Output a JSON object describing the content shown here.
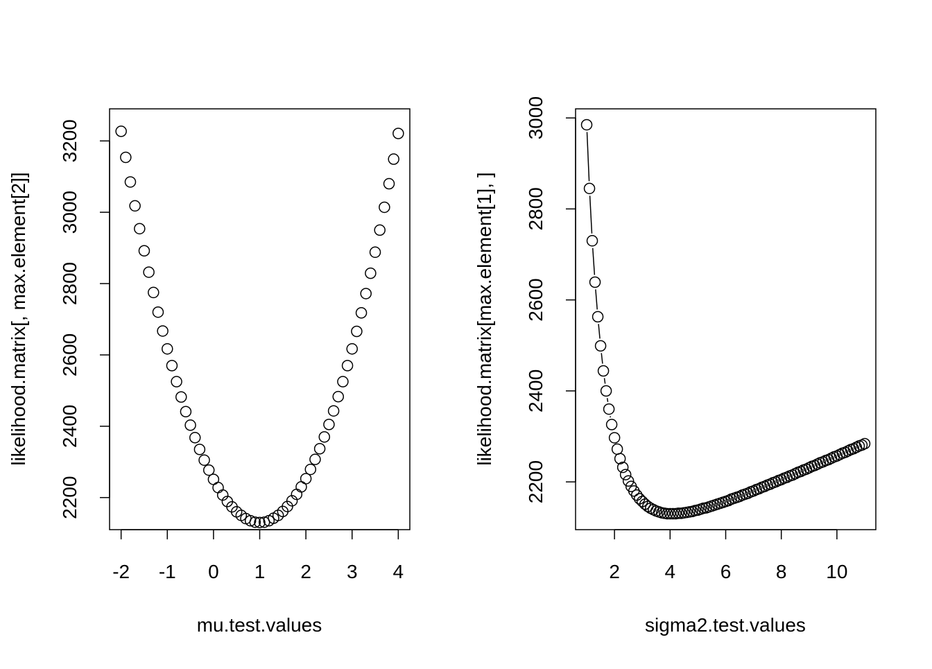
{
  "chart_data": [
    {
      "type": "scatter",
      "title": "",
      "xlabel": "mu.test.values",
      "ylabel": "likelihood.matrix[, max.element[2]]",
      "xlim": [
        -2.25,
        4.25
      ],
      "ylim": [
        2110,
        3290
      ],
      "xticks": [
        -2,
        -1,
        0,
        1,
        2,
        3,
        4
      ],
      "xtick_labels": [
        "-2",
        "-1",
        "0",
        "1",
        "2",
        "3",
        "4"
      ],
      "yticks": [
        2200,
        2400,
        2600,
        2800,
        3000,
        3200
      ],
      "ytick_labels": [
        "2200",
        "2400",
        "2600",
        "2800",
        "3000",
        "3200"
      ],
      "grid": false,
      "plot_style": "points",
      "x": [
        -2,
        -1.9,
        -1.8,
        -1.7,
        -1.6,
        -1.5,
        -1.4,
        -1.3,
        -1.2,
        -1.1,
        -1,
        -0.9,
        -0.8,
        -0.7,
        -0.6,
        -0.5,
        -0.4,
        -0.3,
        -0.2,
        -0.1,
        0,
        0.1,
        0.2,
        0.3,
        0.4,
        0.5,
        0.6,
        0.7,
        0.8,
        0.9,
        1,
        1.1,
        1.2,
        1.3,
        1.4,
        1.5,
        1.6,
        1.7,
        1.8,
        1.9,
        2,
        2.1,
        2.2,
        2.3,
        2.4,
        2.5,
        2.6,
        2.7,
        2.8,
        2.9,
        3,
        3.1,
        3.2,
        3.3,
        3.4,
        3.5,
        3.6,
        3.7,
        3.8,
        3.9,
        4
      ],
      "y": [
        3227,
        3154,
        3085,
        3018,
        2954,
        2892,
        2832,
        2775,
        2720,
        2667,
        2617,
        2570,
        2525,
        2482,
        2441,
        2403,
        2368,
        2335,
        2305,
        2277,
        2251,
        2228,
        2207,
        2189,
        2174,
        2160,
        2150,
        2141,
        2135,
        2131,
        2130,
        2131,
        2135,
        2142,
        2150,
        2161,
        2175,
        2191,
        2209,
        2230,
        2253,
        2279,
        2307,
        2337,
        2370,
        2405,
        2443,
        2483,
        2525,
        2570,
        2617,
        2666,
        2718,
        2772,
        2829,
        2888,
        2950,
        3014,
        3080,
        3149,
        3221
      ]
    },
    {
      "type": "line",
      "title": "",
      "xlabel": "sigma2.test.values",
      "ylabel": "likelihood.matrix[max.element[1], ]",
      "xlim": [
        0.6,
        11.4
      ],
      "ylim": [
        2095,
        3020
      ],
      "xticks": [
        2,
        4,
        6,
        8,
        10
      ],
      "xtick_labels": [
        "2",
        "4",
        "6",
        "8",
        "10"
      ],
      "yticks": [
        2200,
        2400,
        2600,
        2800,
        3000
      ],
      "ytick_labels": [
        "2200",
        "2400",
        "2600",
        "2800",
        "3000"
      ],
      "grid": false,
      "plot_style": "both",
      "x": [
        1,
        1.1,
        1.2,
        1.3,
        1.4,
        1.5,
        1.6,
        1.7,
        1.8,
        1.9,
        2,
        2.1,
        2.2,
        2.3,
        2.4,
        2.5,
        2.6,
        2.7,
        2.8,
        2.9,
        3,
        3.1,
        3.2,
        3.3,
        3.4,
        3.5,
        3.6,
        3.7,
        3.8,
        3.9,
        4,
        4.1,
        4.2,
        4.3,
        4.4,
        4.5,
        4.6,
        4.7,
        4.8,
        4.9,
        5,
        5.1,
        5.2,
        5.3,
        5.4,
        5.5,
        5.6,
        5.7,
        5.8,
        5.9,
        6,
        6.1,
        6.2,
        6.3,
        6.4,
        6.5,
        6.6,
        6.7,
        6.8,
        6.9,
        7,
        7.1,
        7.2,
        7.3,
        7.4,
        7.5,
        7.6,
        7.7,
        7.8,
        7.9,
        8,
        8.1,
        8.2,
        8.3,
        8.4,
        8.5,
        8.6,
        8.7,
        8.8,
        8.9,
        9,
        9.1,
        9.2,
        9.3,
        9.4,
        9.5,
        9.6,
        9.7,
        9.8,
        9.9,
        10,
        10.1,
        10.2,
        10.3,
        10.4,
        10.5,
        10.6,
        10.7,
        10.8,
        10.9,
        11
      ],
      "y": [
        2985,
        2845,
        2730,
        2639,
        2563,
        2499,
        2444,
        2400,
        2360,
        2326,
        2297,
        2272,
        2251,
        2232,
        2216,
        2202,
        2190,
        2180,
        2171,
        2163,
        2157,
        2151,
        2146,
        2142,
        2139,
        2136,
        2134,
        2132,
        2131,
        2130,
        2130,
        2130,
        2130,
        2131,
        2131,
        2132,
        2133,
        2134,
        2135,
        2137,
        2138,
        2140,
        2142,
        2143,
        2145,
        2147,
        2149,
        2151,
        2153,
        2155,
        2157,
        2159,
        2162,
        2164,
        2166,
        2168,
        2171,
        2173,
        2175,
        2178,
        2180,
        2183,
        2185,
        2188,
        2190,
        2193,
        2195,
        2198,
        2200,
        2203,
        2205,
        2208,
        2210,
        2213,
        2215,
        2218,
        2221,
        2223,
        2226,
        2228,
        2231,
        2234,
        2236,
        2239,
        2242,
        2244,
        2247,
        2249,
        2252,
        2255,
        2257,
        2260,
        2263,
        2265,
        2268,
        2271,
        2273,
        2276,
        2279,
        2281,
        2284
      ]
    }
  ]
}
